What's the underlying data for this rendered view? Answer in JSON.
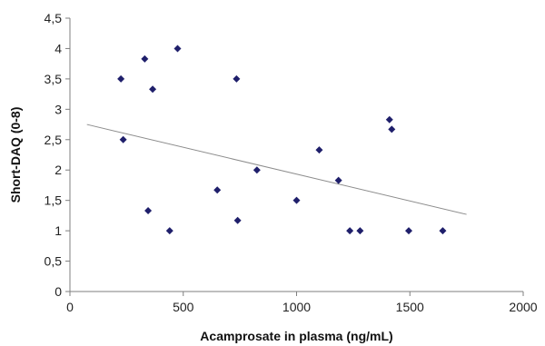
{
  "chart_data": {
    "type": "scatter",
    "title": "",
    "xlabel": "Acamprosate in plasma (ng/mL)",
    "ylabel": "Short-DAQ (0-8)",
    "xlim": [
      0,
      2000
    ],
    "ylim": [
      0,
      4.5
    ],
    "x_ticks": [
      0,
      500,
      1000,
      1500,
      2000
    ],
    "x_tick_labels": [
      "0",
      "500",
      "1000",
      "1500",
      "2000"
    ],
    "y_ticks": [
      0,
      0.5,
      1,
      1.5,
      2,
      2.5,
      3,
      3.5,
      4,
      4.5
    ],
    "y_tick_labels": [
      "0",
      "0,5",
      "1",
      "1,5",
      "2",
      "2,5",
      "3",
      "3,5",
      "4",
      "4,5"
    ],
    "grid": false,
    "legend": "none",
    "marker_color": "#1f1f6b",
    "trendline_color": "#8c8c8c",
    "axis_color": "#7f7f7f",
    "points": [
      {
        "x": 225,
        "y": 3.5
      },
      {
        "x": 235,
        "y": 2.5
      },
      {
        "x": 330,
        "y": 3.83
      },
      {
        "x": 345,
        "y": 1.33
      },
      {
        "x": 365,
        "y": 3.33
      },
      {
        "x": 440,
        "y": 1.0
      },
      {
        "x": 475,
        "y": 4.0
      },
      {
        "x": 650,
        "y": 1.67
      },
      {
        "x": 735,
        "y": 3.5
      },
      {
        "x": 740,
        "y": 1.17
      },
      {
        "x": 825,
        "y": 2.0
      },
      {
        "x": 1000,
        "y": 1.5
      },
      {
        "x": 1100,
        "y": 2.33
      },
      {
        "x": 1185,
        "y": 1.83
      },
      {
        "x": 1235,
        "y": 1.0
      },
      {
        "x": 1280,
        "y": 1.0
      },
      {
        "x": 1410,
        "y": 2.83
      },
      {
        "x": 1420,
        "y": 2.67
      },
      {
        "x": 1495,
        "y": 1.0
      },
      {
        "x": 1645,
        "y": 1.0
      }
    ],
    "trendline": {
      "x": [
        75,
        1750
      ],
      "y": [
        2.75,
        1.27
      ]
    }
  }
}
